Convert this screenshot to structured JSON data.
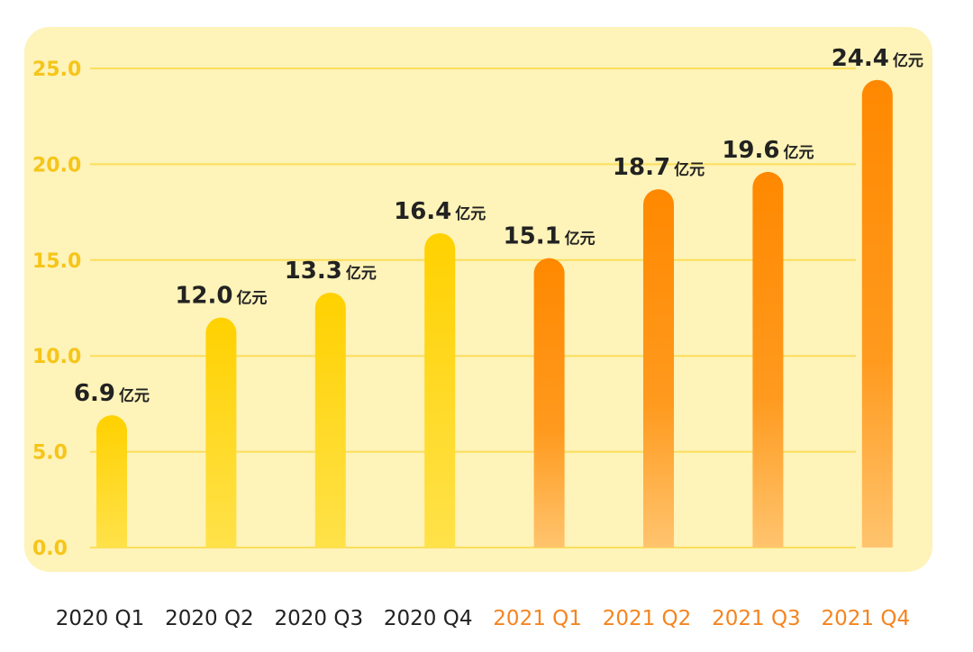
{
  "chart_data": {
    "type": "bar",
    "categories": [
      "2020 Q1",
      "2020 Q2",
      "2020 Q3",
      "2020 Q4",
      "2021 Q1",
      "2021 Q2",
      "2021 Q3",
      "2021 Q4"
    ],
    "values": [
      6.9,
      12.0,
      13.3,
      16.4,
      15.1,
      18.7,
      19.6,
      24.4
    ],
    "unit": "亿元",
    "yticks": [
      "0.0",
      "5.0",
      "10.0",
      "15.0",
      "20.0",
      "25.0"
    ],
    "ylim": [
      0,
      25
    ],
    "grid": true,
    "colors": {
      "panel": "#FEF3B8",
      "gridline": "#FBDE5C",
      "tick": "#F6C51A",
      "year2020_bar": "#FFD61A",
      "year2021_bar_top": "#FF8A00",
      "year2021_bar_bottom": "#FFC36A",
      "year2020_label": "#222222",
      "year2021_label": "#F5841F"
    }
  }
}
